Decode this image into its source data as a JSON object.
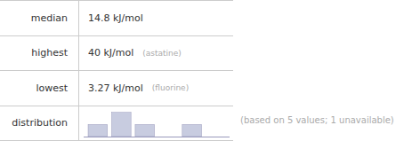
{
  "chart_data": {
    "type": "bar",
    "x": [
      0,
      1,
      2,
      4
    ],
    "values": [
      1,
      2,
      1,
      1
    ],
    "color": "#c8cce0",
    "xlim": [
      -0.6,
      5.6
    ],
    "ylim": [
      0,
      2.2
    ],
    "tick_labels": false,
    "grid": false,
    "table": [
      {
        "label": "median",
        "value": "14.8 kJ/mol"
      },
      {
        "label": "highest",
        "value": "40 kJ/mol",
        "element": "(astatine)"
      },
      {
        "label": "lowest",
        "value": "3.27 kJ/mol",
        "element": "(fluorine)"
      },
      {
        "label": "distribution"
      }
    ],
    "footnote": "(based on 5 values; 1 unavailable)"
  }
}
